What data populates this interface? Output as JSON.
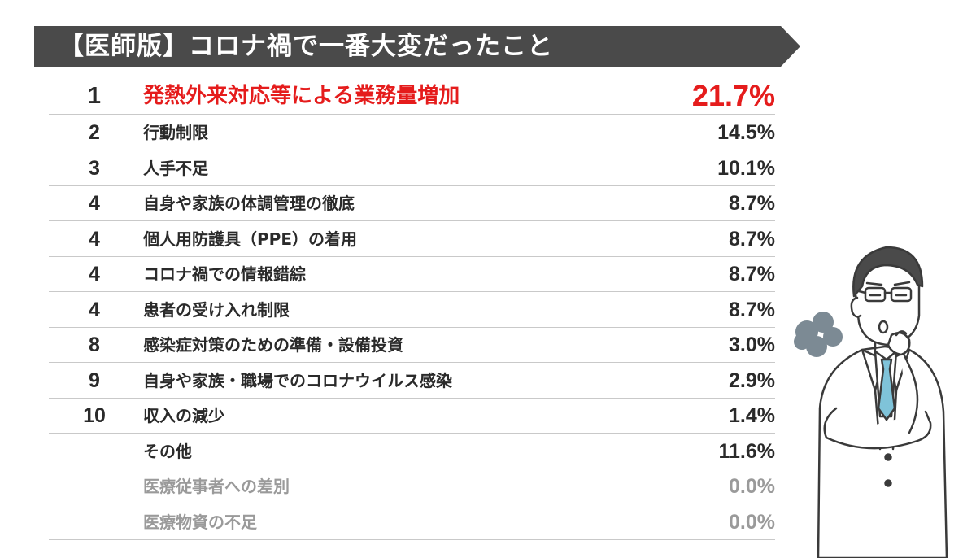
{
  "title": "【医師版】コロナ禍で一番大変だったこと",
  "colors": {
    "banner": "#4a4a4a",
    "highlight": "#e51c1c",
    "text": "#2a2a2a",
    "muted": "#9a9a9a",
    "divider": "#c9c9c9",
    "tie": "#7fc3d9"
  },
  "illustration": {
    "name": "doctor-thinking-illustration",
    "icons": [
      "sigh-puff-icon",
      "doctor-figure"
    ]
  },
  "chart_data": {
    "type": "table",
    "title": "【医師版】コロナ禍で一番大変だったこと",
    "columns": [
      "rank",
      "item",
      "percent"
    ],
    "rows": [
      {
        "rank": "1",
        "label": "発熱外来対応等による業務量増加",
        "value": 21.7,
        "display": "21.7%",
        "style": "highlight"
      },
      {
        "rank": "2",
        "label": "行動制限",
        "value": 14.5,
        "display": "14.5%",
        "style": "normal"
      },
      {
        "rank": "3",
        "label": "人手不足",
        "value": 10.1,
        "display": "10.1%",
        "style": "normal"
      },
      {
        "rank": "4",
        "label": "自身や家族の体調管理の徹底",
        "value": 8.7,
        "display": "8.7%",
        "style": "normal"
      },
      {
        "rank": "4",
        "label": "個人用防護具（PPE）の着用",
        "value": 8.7,
        "display": "8.7%",
        "style": "normal"
      },
      {
        "rank": "4",
        "label": "コロナ禍での情報錯綜",
        "value": 8.7,
        "display": "8.7%",
        "style": "normal"
      },
      {
        "rank": "4",
        "label": "患者の受け入れ制限",
        "value": 8.7,
        "display": "8.7%",
        "style": "normal"
      },
      {
        "rank": "8",
        "label": "感染症対策のための準備・設備投資",
        "value": 3.0,
        "display": "3.0%",
        "style": "normal"
      },
      {
        "rank": "9",
        "label": "自身や家族・職場でのコロナウイルス感染",
        "value": 2.9,
        "display": "2.9%",
        "style": "normal"
      },
      {
        "rank": "10",
        "label": "収入の減少",
        "value": 1.4,
        "display": "1.4%",
        "style": "normal"
      },
      {
        "rank": "",
        "label": "その他",
        "value": 11.6,
        "display": "11.6%",
        "style": "normal"
      },
      {
        "rank": "",
        "label": "医療従事者への差別",
        "value": 0.0,
        "display": "0.0%",
        "style": "muted"
      },
      {
        "rank": "",
        "label": "医療物資の不足",
        "value": 0.0,
        "display": "0.0%",
        "style": "muted"
      }
    ]
  }
}
